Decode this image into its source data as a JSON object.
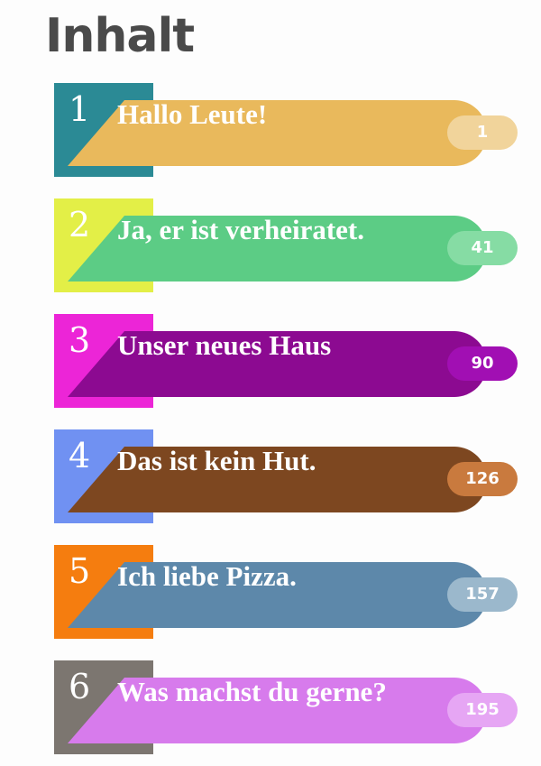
{
  "title": "Inhalt",
  "entries": [
    {
      "num": "1",
      "label": "Hallo Leute!",
      "page": "1",
      "tab": "#2b8a95",
      "bar": "#e9b95c",
      "pill": "#f1d49b",
      "fold": "#e9b95c"
    },
    {
      "num": "2",
      "label": "Ja, er ist verheiratet.",
      "page": "41",
      "tab": "#e3ef47",
      "bar": "#5ccc85",
      "pill": "#86dca4",
      "fold": "#5ccc85"
    },
    {
      "num": "3",
      "label": "Unser neues Haus",
      "page": "90",
      "tab": "#ec25d7",
      "bar": "#8c0a91",
      "pill": "#a10fb3",
      "fold": "#8c0a91"
    },
    {
      "num": "4",
      "label": "Das ist kein Hut.",
      "page": "126",
      "tab": "#7091f2",
      "bar": "#7d4720",
      "pill": "#c97a3e",
      "fold": "#7d4720"
    },
    {
      "num": "5",
      "label": "Ich liebe Pizza.",
      "page": "157",
      "tab": "#f57d0f",
      "bar": "#5d88aa",
      "pill": "#9bb8cc",
      "fold": "#5d88aa"
    },
    {
      "num": "6",
      "label": "Was machst du gerne?",
      "page": "195",
      "tab": "#7c7670",
      "bar": "#d77bec",
      "pill": "#e6a6f4",
      "fold": "#d77bec"
    }
  ]
}
